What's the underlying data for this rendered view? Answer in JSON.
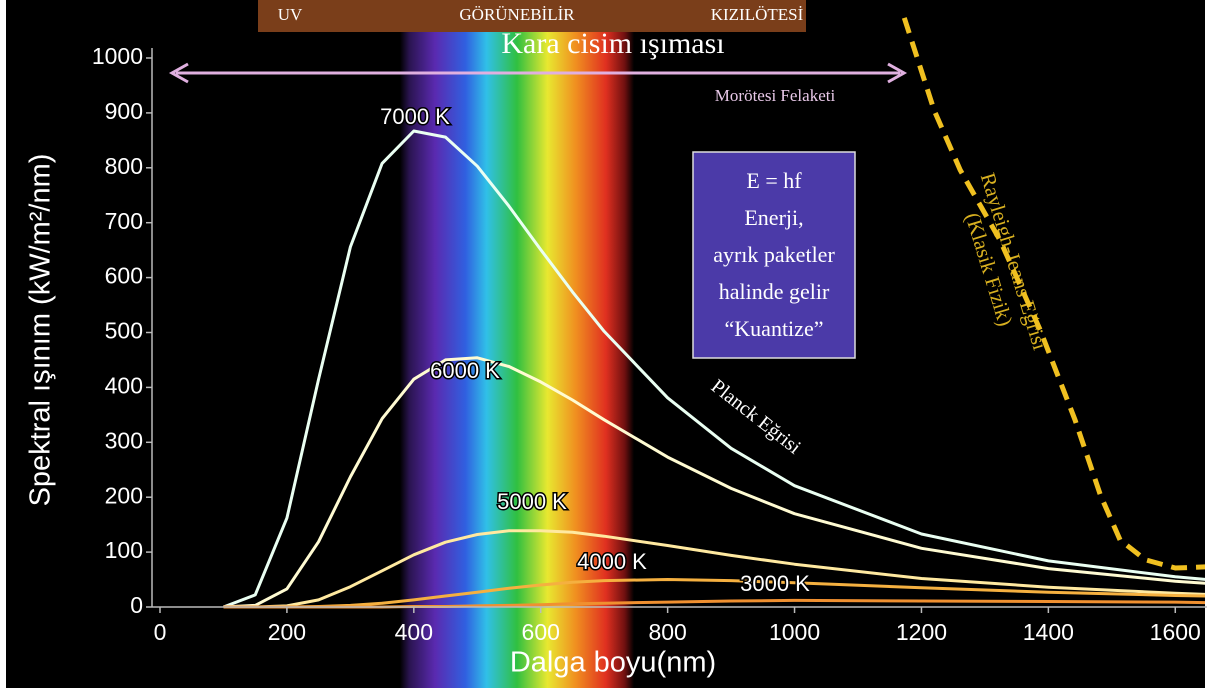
{
  "chart_data": {
    "type": "line",
    "title": "Kara cisim ışıması",
    "band_labels": [
      "UV",
      "GÖRÜNEBİLİR",
      "KIZILÖTESİ"
    ],
    "xlabel": "Dalga boyu(nm)",
    "ylabel": "Spektral ışınım (kW/m²/nm)",
    "x": [
      100,
      150,
      200,
      250,
      300,
      350,
      400,
      450,
      500,
      550,
      600,
      650,
      700,
      800,
      900,
      1000,
      1200,
      1400,
      1600,
      1650
    ],
    "series": [
      {
        "name": "7000 K",
        "color": "#eafff2",
        "values": [
          0,
          22,
          162,
          415,
          656,
          808,
          867,
          856,
          803,
          730,
          651,
          574,
          502,
          381,
          289,
          221,
          133,
          84,
          55,
          50
        ]
      },
      {
        "name": "6000 K",
        "color": "#fffbd2",
        "values": [
          0,
          3,
          33,
          119,
          237,
          343,
          415,
          450,
          454,
          438,
          410,
          377,
          341,
          273,
          216,
          170,
          107,
          70,
          47,
          43
        ]
      },
      {
        "name": "5000 K",
        "color": "#ffe9a0",
        "values": [
          0,
          0,
          2,
          13,
          37,
          66,
          95,
          118,
          132,
          139,
          139,
          136,
          129,
          112,
          94,
          78,
          52,
          36,
          25,
          23
        ]
      },
      {
        "name": "4000 K",
        "color": "#f5b040",
        "values": [
          0,
          0,
          0,
          1,
          3,
          7,
          13,
          20,
          27,
          34,
          40,
          45,
          48,
          50,
          48,
          44,
          35,
          27,
          21,
          20
        ]
      },
      {
        "name": "3000 K",
        "color": "#f09030",
        "values": [
          0,
          0,
          0,
          0,
          0,
          0,
          1,
          1,
          2,
          3,
          4,
          6,
          7,
          9,
          11,
          12,
          11,
          10,
          9,
          8
        ]
      },
      {
        "name": "Rayleigh-Jeans Eğrisi",
        "color": "#f0c020",
        "dashed": true,
        "x": [
          1173,
          1220,
          1261,
          1324,
          1387,
          1442,
          1482,
          1513,
          1553,
          1600,
          1647
        ],
        "values": [
          1073,
          905,
          796,
          668,
          505,
          341,
          204,
          122,
          86,
          71,
          73
        ]
      }
    ],
    "xlim": [
      0,
      1650
    ],
    "ylim": [
      0,
      1000
    ],
    "xticks": [
      0,
      200,
      400,
      600,
      800,
      1000,
      1200,
      1400,
      1600
    ],
    "yticks": [
      0,
      100,
      200,
      300,
      400,
      500,
      600,
      700,
      800,
      900,
      1000
    ],
    "annotations": {
      "catastrophe": "Morötesi Felaketi",
      "planck": "Planck Eğrisi",
      "classical": "(Klasik Fizik)",
      "box": [
        "E = hf",
        "Enerji,",
        "ayrık paketler",
        "halinde gelir",
        "“Kuantize”"
      ]
    }
  }
}
